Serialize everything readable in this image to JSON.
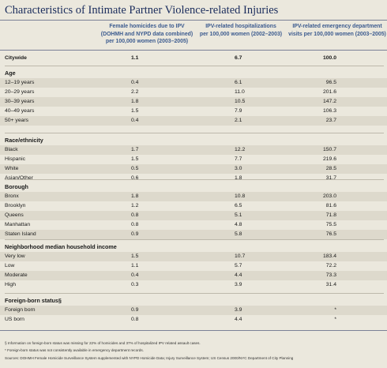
{
  "title": "Characteristics of Intimate Partner Violence-related Injuries",
  "columns": [
    [
      "Female homicides due to IPV",
      "(DOHMH and NYPD data combined)",
      "per 100,000 women (2003–2005)"
    ],
    [
      "IPV-related hospitalizations",
      "per 100,000 women (2002–2003)"
    ],
    [
      "IPV-related emergency department",
      "visits per 100,000 women (2003–2005)"
    ]
  ],
  "citywide": {
    "label": "Citywide",
    "v1": "1.1",
    "v2": "6.7",
    "v3": "100.0"
  },
  "sections": [
    {
      "title": "Age",
      "rows": [
        {
          "label": "12–19 years",
          "v1": "0.4",
          "v2": "6.1",
          "v3": "96.5"
        },
        {
          "label": "20–29 years",
          "v1": "2.2",
          "v2": "11.0",
          "v3": "201.6"
        },
        {
          "label": "30–39 years",
          "v1": "1.8",
          "v2": "10.5",
          "v3": "147.2"
        },
        {
          "label": "40–49 years",
          "v1": "1.5",
          "v2": "7.9",
          "v3": "106.3"
        },
        {
          "label": "50+ years",
          "v1": "0.4",
          "v2": "2.1",
          "v3": "23.7"
        }
      ]
    },
    {
      "title": "Race/ethnicity",
      "rows": [
        {
          "label": "Black",
          "v1": "1.7",
          "v2": "12.2",
          "v3": "150.7"
        },
        {
          "label": "Hispanic",
          "v1": "1.5",
          "v2": "7.7",
          "v3": "219.6"
        },
        {
          "label": "White",
          "v1": "0.5",
          "v2": "3.0",
          "v3": "28.5"
        },
        {
          "label": "Asian/Other",
          "v1": "0.6",
          "v2": "1.8",
          "v3": "31.7"
        }
      ]
    },
    {
      "title": "Borough",
      "rows": [
        {
          "label": "Bronx",
          "v1": "1.8",
          "v2": "10.8",
          "v3": "203.0"
        },
        {
          "label": "Brooklyn",
          "v1": "1.2",
          "v2": "6.5",
          "v3": "81.6"
        },
        {
          "label": "Queens",
          "v1": "0.8",
          "v2": "5.1",
          "v3": "71.8"
        },
        {
          "label": "Manhattan",
          "v1": "0.8",
          "v2": "4.8",
          "v3": "75.5"
        },
        {
          "label": "Staten Island",
          "v1": "0.9",
          "v2": "5.8",
          "v3": "76.5"
        }
      ]
    },
    {
      "title": "Neighborhood median household income",
      "rows": [
        {
          "label": "Very low",
          "v1": "1.5",
          "v2": "10.7",
          "v3": "183.4"
        },
        {
          "label": "Low",
          "v1": "1.1",
          "v2": "5.7",
          "v3": "72.2"
        },
        {
          "label": "Moderate",
          "v1": "0.4",
          "v2": "4.4",
          "v3": "73.3"
        },
        {
          "label": "High",
          "v1": "0.3",
          "v2": "3.9",
          "v3": "31.4"
        }
      ]
    },
    {
      "title": "Foreign-born status§",
      "rows": [
        {
          "label": "Foreign born",
          "v1": "0.9",
          "v2": "3.9",
          "v3": "*"
        },
        {
          "label": "US born",
          "v1": "0.8",
          "v2": "4.4",
          "v3": "*"
        }
      ]
    }
  ],
  "footnotes": [
    "§ Information on foreign-born status was missing for 22% of homicides and 37% of hospitalized IPV related assault cases.",
    "* Foreign-born status was not consistently available in emergency department records.",
    "Sources: DOHMH Female Homicide Surveillance System supplemented with NYPD Homicide Data; Injury Surveillance System; US Census 2000/NYC Department of City Planning"
  ]
}
